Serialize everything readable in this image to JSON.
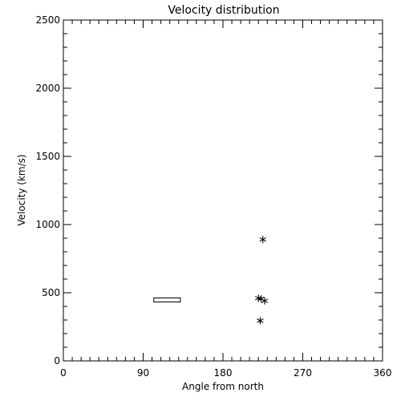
{
  "chart_data": {
    "type": "scatter",
    "title": "Velocity distribution",
    "xlabel": "Angle from north",
    "ylabel": "Velocity (km/s)",
    "xlim": [
      0,
      360
    ],
    "ylim": [
      0,
      2500
    ],
    "xticks": [
      0,
      90,
      180,
      270,
      360
    ],
    "yticks": [
      0,
      500,
      1000,
      1500,
      2000,
      2500
    ],
    "grid": false,
    "series": [
      {
        "marker": "asterisk",
        "points": [
          {
            "x": 225,
            "y": 890
          },
          {
            "x": 220,
            "y": 460
          },
          {
            "x": 223,
            "y": 455
          },
          {
            "x": 227,
            "y": 440
          },
          {
            "x": 222,
            "y": 295
          }
        ]
      }
    ],
    "ranges": [
      {
        "x0": 102,
        "x1": 132,
        "y": 450
      }
    ]
  }
}
